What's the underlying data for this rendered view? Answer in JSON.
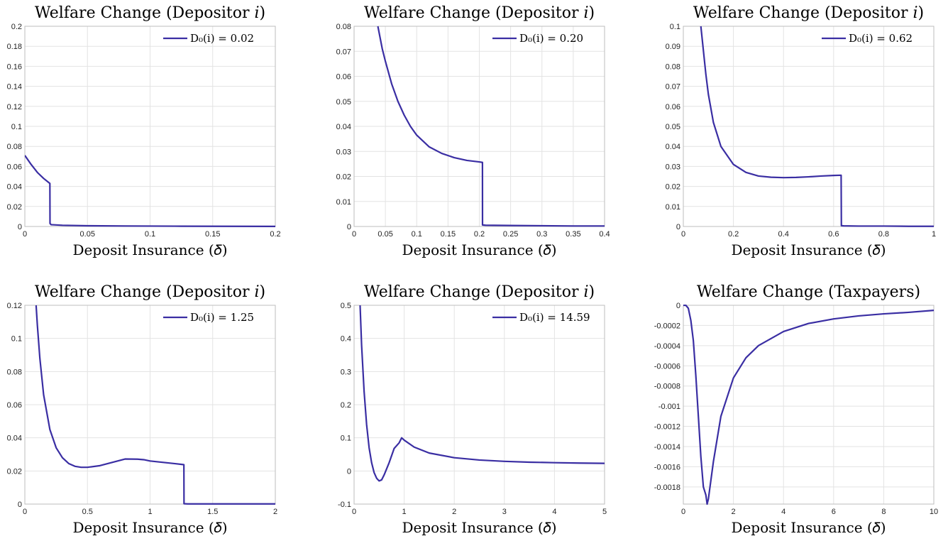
{
  "colors": {
    "line": "#3a2ea3"
  },
  "chart_data": [
    {
      "type": "line",
      "title": "Welfare Change (Depositor 𝑖)",
      "xlabel": "Deposit Insurance (𝛿)",
      "xlim": [
        0,
        0.2
      ],
      "ylim": [
        0,
        0.2
      ],
      "xticks": [
        "0",
        "0.05",
        "0.1",
        "0.15",
        "0.2"
      ],
      "yticks": [
        "0",
        "0.02",
        "0.04",
        "0.06",
        "0.08",
        "0.1",
        "0.12",
        "0.14",
        "0.16",
        "0.18",
        "0.2"
      ],
      "legend": "D₀(i) = 0.02",
      "legend_position": "top-right",
      "grid": true,
      "series": [
        {
          "x": [
            0,
            0.005,
            0.01,
            0.015,
            0.02,
            0.0201,
            0.021,
            0.03,
            0.05,
            0.08,
            0.12,
            0.16,
            0.2
          ],
          "y": [
            0.071,
            0.062,
            0.054,
            0.048,
            0.043,
            0.003,
            0.0018,
            0.0012,
            0.0007,
            0.0005,
            0.0003,
            0.0002,
            0.0001
          ]
        }
      ]
    },
    {
      "type": "line",
      "title": "Welfare Change (Depositor 𝑖)",
      "xlabel": "Deposit Insurance (𝛿)",
      "xlim": [
        0,
        0.4
      ],
      "ylim": [
        0,
        0.08
      ],
      "xticks": [
        "0",
        "0.05",
        "0.1",
        "0.15",
        "0.2",
        "0.25",
        "0.3",
        "0.35",
        "0.4"
      ],
      "yticks": [
        "0",
        "0.01",
        "0.02",
        "0.03",
        "0.04",
        "0.05",
        "0.06",
        "0.07",
        "0.08"
      ],
      "legend": "D₀(i) = 0.20",
      "legend_position": "top-right",
      "grid": true,
      "series": [
        {
          "x": [
            0.038,
            0.045,
            0.05,
            0.06,
            0.07,
            0.08,
            0.09,
            0.1,
            0.12,
            0.14,
            0.16,
            0.18,
            0.2,
            0.205,
            0.2051,
            0.21,
            0.25,
            0.3,
            0.35,
            0.4
          ],
          "y": [
            0.08,
            0.071,
            0.066,
            0.057,
            0.05,
            0.0445,
            0.04,
            0.0365,
            0.0318,
            0.0292,
            0.0275,
            0.0264,
            0.0258,
            0.0256,
            0.0006,
            0.0005,
            0.0004,
            0.0003,
            0.0002,
            0.0002
          ]
        }
      ]
    },
    {
      "type": "line",
      "title": "Welfare Change (Depositor 𝑖)",
      "xlabel": "Deposit Insurance (𝛿)",
      "xlim": [
        0,
        1
      ],
      "ylim": [
        0,
        0.1
      ],
      "xticks": [
        "0",
        "0.2",
        "0.4",
        "0.6",
        "0.8",
        "1"
      ],
      "yticks": [
        "0",
        "0.01",
        "0.02",
        "0.03",
        "0.04",
        "0.05",
        "0.06",
        "0.07",
        "0.08",
        "0.09",
        "0.1"
      ],
      "legend": "D₀(i) = 0.62",
      "legend_position": "top-right",
      "grid": true,
      "series": [
        {
          "x": [
            0.07,
            0.08,
            0.09,
            0.1,
            0.12,
            0.15,
            0.2,
            0.25,
            0.3,
            0.35,
            0.4,
            0.45,
            0.5,
            0.55,
            0.6,
            0.63,
            0.631,
            0.64,
            0.7,
            0.8,
            0.9,
            1
          ],
          "y": [
            0.1,
            0.088,
            0.076,
            0.066,
            0.052,
            0.04,
            0.031,
            0.027,
            0.0252,
            0.0246,
            0.0244,
            0.0245,
            0.0248,
            0.0252,
            0.0255,
            0.0256,
            0.0004,
            0.0003,
            0.0002,
            0.0002,
            0.0001,
            0.0001
          ]
        }
      ]
    },
    {
      "type": "line",
      "title": "Welfare Change (Depositor 𝑖)",
      "xlabel": "Deposit Insurance (𝛿)",
      "xlim": [
        0,
        2
      ],
      "ylim": [
        0,
        0.12
      ],
      "xticks": [
        "0",
        "0.5",
        "1",
        "1.5",
        "2"
      ],
      "yticks": [
        "0",
        "0.02",
        "0.04",
        "0.06",
        "0.08",
        "0.1",
        "0.12"
      ],
      "legend": "D₀(i) = 1.25",
      "legend_position": "top-right",
      "grid": true,
      "series": [
        {
          "x": [
            0.09,
            0.1,
            0.12,
            0.15,
            0.2,
            0.25,
            0.3,
            0.35,
            0.4,
            0.45,
            0.5,
            0.6,
            0.7,
            0.8,
            0.9,
            0.95,
            1.0,
            1.1,
            1.2,
            1.27,
            1.271,
            1.3,
            1.5,
            1.75,
            2
          ],
          "y": [
            0.12,
            0.108,
            0.088,
            0.066,
            0.045,
            0.034,
            0.028,
            0.0245,
            0.0228,
            0.0222,
            0.0222,
            0.0232,
            0.0252,
            0.0272,
            0.0271,
            0.0268,
            0.026,
            0.0252,
            0.0244,
            0.0238,
            0.0002,
            0.0001,
            0.0001,
            0.0001,
            0.0001
          ]
        }
      ]
    },
    {
      "type": "line",
      "title": "Welfare Change (Depositor 𝑖)",
      "xlabel": "Deposit Insurance (𝛿)",
      "xlim": [
        0,
        5
      ],
      "ylim": [
        -0.1,
        0.5
      ],
      "xticks": [
        "0",
        "1",
        "2",
        "3",
        "4",
        "5"
      ],
      "yticks": [
        "-0.1",
        "0",
        "0.1",
        "0.2",
        "0.3",
        "0.4",
        "0.5"
      ],
      "legend": "D₀(i) = 14.59",
      "legend_position": "top-right",
      "grid": true,
      "series": [
        {
          "x": [
            0.12,
            0.15,
            0.2,
            0.25,
            0.3,
            0.35,
            0.4,
            0.45,
            0.5,
            0.55,
            0.6,
            0.7,
            0.8,
            0.9,
            0.95,
            1.0,
            1.2,
            1.5,
            2,
            2.5,
            3,
            3.5,
            4,
            4.5,
            5
          ],
          "y": [
            0.5,
            0.38,
            0.24,
            0.14,
            0.07,
            0.025,
            -0.005,
            -0.022,
            -0.03,
            -0.027,
            -0.012,
            0.025,
            0.068,
            0.085,
            0.1,
            0.093,
            0.072,
            0.054,
            0.04,
            0.033,
            0.029,
            0.0265,
            0.025,
            0.0238,
            0.023
          ]
        }
      ]
    },
    {
      "type": "line",
      "title": "Welfare Change (Taxpayers)",
      "xlabel": "Deposit Insurance (𝛿)",
      "xlim": [
        0,
        10
      ],
      "ylim": [
        -0.00197,
        0
      ],
      "xticks": [
        "0",
        "2",
        "4",
        "6",
        "8",
        "10"
      ],
      "yticks": [
        "0",
        "-0.0002",
        "-0.0004",
        "-0.0006",
        "-0.0008",
        "-0.001",
        "-0.0012",
        "-0.0014",
        "-0.0016",
        "-0.0018"
      ],
      "legend": "",
      "grid": true,
      "series": [
        {
          "x": [
            0,
            0.1,
            0.2,
            0.3,
            0.4,
            0.5,
            0.6,
            0.7,
            0.8,
            0.9,
            0.95,
            1.0,
            1.2,
            1.5,
            2,
            2.5,
            3,
            4,
            5,
            6,
            7,
            8,
            9,
            10
          ],
          "y": [
            0,
            0,
            -3e-05,
            -0.00015,
            -0.00035,
            -0.0007,
            -0.0011,
            -0.0015,
            -0.0018,
            -0.00188,
            -0.00197,
            -0.00192,
            -0.00155,
            -0.0011,
            -0.00072,
            -0.00052,
            -0.0004,
            -0.00026,
            -0.00018,
            -0.000135,
            -0.000105,
            -8.5e-05,
            -7e-05,
            -5e-05
          ]
        }
      ]
    }
  ]
}
